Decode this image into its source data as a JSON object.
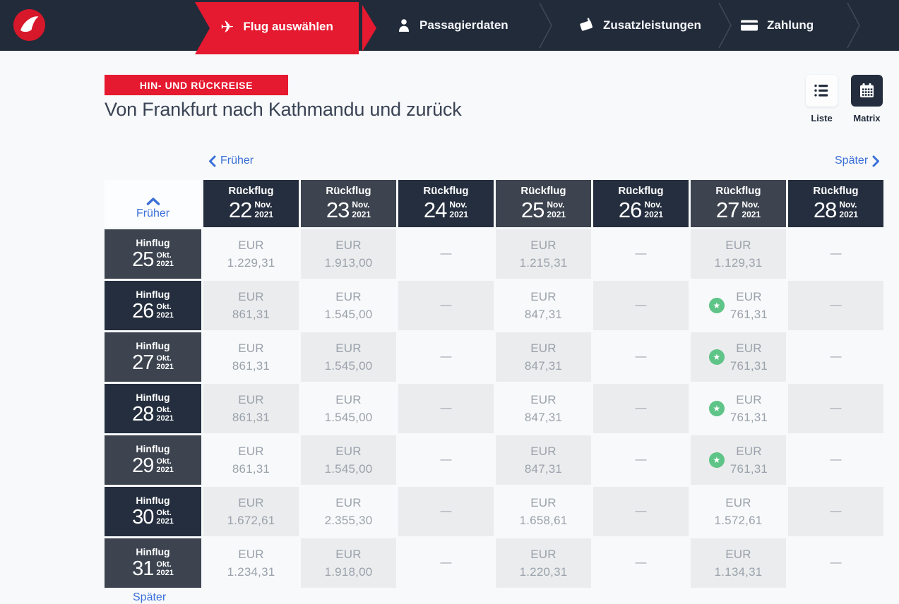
{
  "nav": {
    "steps": [
      {
        "label": "Flug auswählen",
        "icon": "plane-icon",
        "active": true
      },
      {
        "label": "Passagierdaten",
        "icon": "person-icon",
        "active": false
      },
      {
        "label": "Zusatzleistungen",
        "icon": "tag-icon",
        "active": false
      },
      {
        "label": "Zahlung",
        "icon": "card-icon",
        "active": false
      }
    ],
    "logo_icon": "turkish-airlines-logo"
  },
  "header": {
    "trip_type_badge": "HIN- UND RÜCKREISE",
    "title": "Von Frankfurt nach Kathmandu und zurück",
    "view_toggle": {
      "list_label": "Liste",
      "matrix_label": "Matrix",
      "selected": "Matrix",
      "list_icon": "list-icon",
      "matrix_icon": "calendar-icon"
    }
  },
  "matrix": {
    "earlier_link": "Früher",
    "later_link": "Später",
    "corner_earlier": "Früher",
    "bottom_later": "Später",
    "currency": "EUR",
    "dash": "—",
    "star_glyph": "★",
    "best_price_icon": "star-icon",
    "columns": [
      {
        "label": "Rückflug",
        "day": "22",
        "month": "Nov.",
        "year": "2021"
      },
      {
        "label": "Rückflug",
        "day": "23",
        "month": "Nov.",
        "year": "2021"
      },
      {
        "label": "Rückflug",
        "day": "24",
        "month": "Nov.",
        "year": "2021"
      },
      {
        "label": "Rückflug",
        "day": "25",
        "month": "Nov.",
        "year": "2021"
      },
      {
        "label": "Rückflug",
        "day": "26",
        "month": "Nov.",
        "year": "2021"
      },
      {
        "label": "Rückflug",
        "day": "27",
        "month": "Nov.",
        "year": "2021"
      },
      {
        "label": "Rückflug",
        "day": "28",
        "month": "Nov.",
        "year": "2021"
      }
    ],
    "rows": [
      {
        "label": "Hinflug",
        "day": "25",
        "month": "Okt.",
        "year": "2021"
      },
      {
        "label": "Hinflug",
        "day": "26",
        "month": "Okt.",
        "year": "2021"
      },
      {
        "label": "Hinflug",
        "day": "27",
        "month": "Okt.",
        "year": "2021"
      },
      {
        "label": "Hinflug",
        "day": "28",
        "month": "Okt.",
        "year": "2021"
      },
      {
        "label": "Hinflug",
        "day": "29",
        "month": "Okt.",
        "year": "2021"
      },
      {
        "label": "Hinflug",
        "day": "30",
        "month": "Okt.",
        "year": "2021"
      },
      {
        "label": "Hinflug",
        "day": "31",
        "month": "Okt.",
        "year": "2021"
      }
    ],
    "cells": [
      [
        {
          "price": "1.229,31",
          "star": false
        },
        {
          "price": "1.913,00",
          "star": false
        },
        null,
        {
          "price": "1.215,31",
          "star": false
        },
        null,
        {
          "price": "1.129,31",
          "star": false
        },
        null
      ],
      [
        {
          "price": "861,31",
          "star": false
        },
        {
          "price": "1.545,00",
          "star": false
        },
        null,
        {
          "price": "847,31",
          "star": false
        },
        null,
        {
          "price": "761,31",
          "star": true
        },
        null
      ],
      [
        {
          "price": "861,31",
          "star": false
        },
        {
          "price": "1.545,00",
          "star": false
        },
        null,
        {
          "price": "847,31",
          "star": false
        },
        null,
        {
          "price": "761,31",
          "star": true
        },
        null
      ],
      [
        {
          "price": "861,31",
          "star": false
        },
        {
          "price": "1.545,00",
          "star": false
        },
        null,
        {
          "price": "847,31",
          "star": false
        },
        null,
        {
          "price": "761,31",
          "star": true
        },
        null
      ],
      [
        {
          "price": "861,31",
          "star": false
        },
        {
          "price": "1.545,00",
          "star": false
        },
        null,
        {
          "price": "847,31",
          "star": false
        },
        null,
        {
          "price": "761,31",
          "star": true
        },
        null
      ],
      [
        {
          "price": "1.672,61",
          "star": false
        },
        {
          "price": "2.355,30",
          "star": false
        },
        null,
        {
          "price": "1.658,61",
          "star": false
        },
        null,
        {
          "price": "1.572,61",
          "star": false
        },
        null
      ],
      [
        {
          "price": "1.234,31",
          "star": false
        },
        {
          "price": "1.918,00",
          "star": false
        },
        null,
        {
          "price": "1.220,31",
          "star": false
        },
        null,
        {
          "price": "1.134,31",
          "star": false
        },
        null
      ]
    ]
  },
  "colors": {
    "accent_red": "#e5192f",
    "navbar_navy": "#222b3a",
    "header_navy": "#242e3e",
    "header_slate": "#3d4450",
    "link_blue": "#3a6fd8",
    "star_green": "#5ec487"
  }
}
